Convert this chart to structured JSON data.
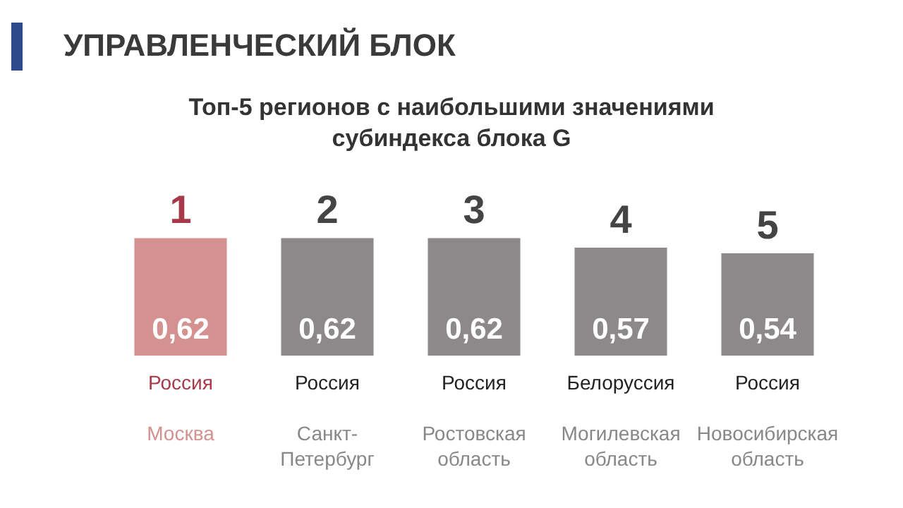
{
  "chart_data": {
    "type": "bar",
    "title": "УПРАВЛЕНЧЕСКИЙ БЛОК",
    "subtitle": "Топ-5 регионов с наибольшими значениями\nсубиндекса блока G",
    "categories": [
      "Россия\n\nМосква",
      "Россия\n\nСанкт-\nПетербург",
      "Россия\n\nРостовская\nобласть",
      "Белоруссия\n\nМогилевская\nобласть",
      "Россия\n\nНовосибирская\nобласть"
    ],
    "values": [
      0.62,
      0.62,
      0.62,
      0.57,
      0.54
    ],
    "value_labels": [
      "0,62",
      "0,62",
      "0,62",
      "0,57",
      "0,54"
    ],
    "colors": [
      "#d4918f",
      "#8d888a",
      "#8d888a",
      "#8d888a",
      "#8d888a"
    ],
    "annotations": [
      {
        "text": "1",
        "x": "Россия\n\nМосква",
        "y": 0.62
      },
      {
        "text": "2",
        "x": "Россия\n\nСанкт-\nПетербург",
        "y": 0.62
      },
      {
        "text": "3",
        "x": "Россия\n\nРостовская\nобласть",
        "y": 0.62
      },
      {
        "text": "4",
        "x": "Белоруссия\n\nМогилевская\nобласть",
        "y": 0.57
      },
      {
        "text": "5",
        "x": "Россия\n\nНовосибирская\nобласть",
        "y": 0.54
      }
    ]
  }
}
